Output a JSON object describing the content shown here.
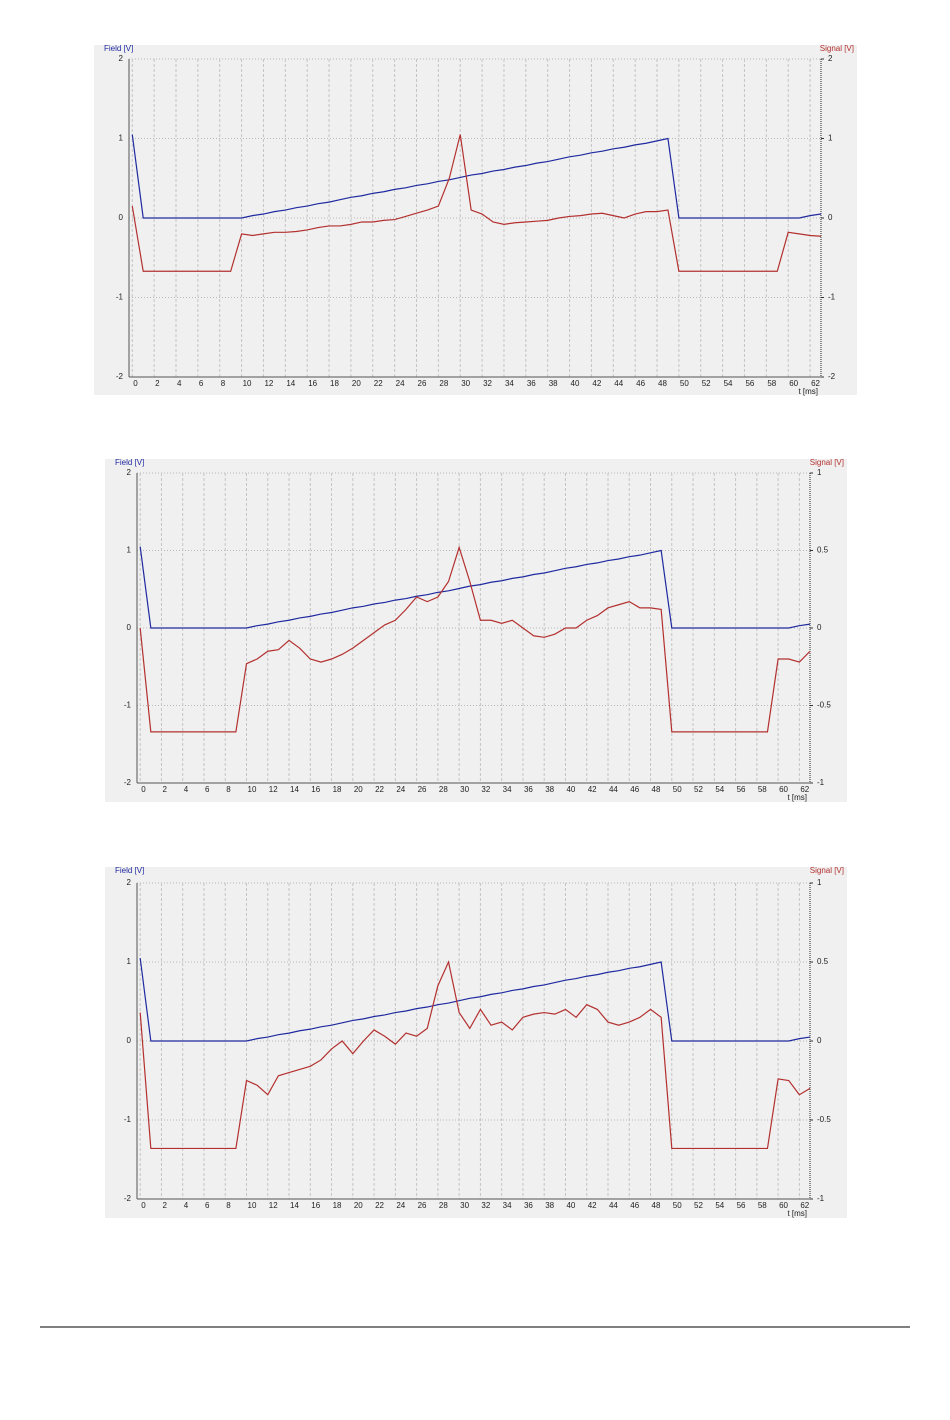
{
  "chart_data": [
    {
      "type": "line",
      "y_label": "Field [V]",
      "y2_label": "Signal [V]",
      "x_label": "t [ms]",
      "x": [
        0,
        1,
        2,
        3,
        4,
        5,
        6,
        7,
        8,
        9,
        10,
        11,
        12,
        13,
        14,
        15,
        16,
        17,
        18,
        19,
        20,
        21,
        22,
        23,
        24,
        25,
        26,
        27,
        28,
        29,
        30,
        31,
        32,
        33,
        34,
        35,
        36,
        37,
        38,
        39,
        40,
        41,
        42,
        43,
        44,
        45,
        46,
        47,
        48,
        49,
        50,
        51,
        52,
        53,
        54,
        55,
        56,
        57,
        58,
        59,
        60,
        61,
        62,
        63
      ],
      "xlim": [
        -0.3,
        63
      ],
      "xticks": [
        0,
        2,
        4,
        6,
        8,
        10,
        12,
        14,
        16,
        18,
        20,
        22,
        24,
        26,
        28,
        30,
        32,
        34,
        36,
        38,
        40,
        42,
        44,
        46,
        48,
        50,
        52,
        54,
        56,
        58,
        60,
        62
      ],
      "ylim": [
        -2,
        2
      ],
      "yticks": [
        -2,
        -1,
        0,
        1,
        2
      ],
      "y2lim": [
        -2,
        2
      ],
      "y2ticks": [
        -2,
        -1,
        0,
        1,
        2
      ],
      "grid": true,
      "series": [
        {
          "name": "Field",
          "color": "#1f2aa0",
          "values": [
            1.05,
            0,
            0,
            0,
            0,
            0,
            0,
            0,
            0,
            0,
            0,
            0.03,
            0.05,
            0.08,
            0.1,
            0.13,
            0.15,
            0.18,
            0.2,
            0.23,
            0.26,
            0.28,
            0.31,
            0.33,
            0.36,
            0.38,
            0.41,
            0.43,
            0.46,
            0.48,
            0.51,
            0.54,
            0.56,
            0.59,
            0.61,
            0.64,
            0.66,
            0.69,
            0.71,
            0.74,
            0.77,
            0.79,
            0.82,
            0.84,
            0.87,
            0.89,
            0.92,
            0.94,
            0.97,
            1.0,
            0,
            0,
            0,
            0,
            0,
            0,
            0,
            0,
            0,
            0,
            0,
            0,
            0.03,
            0.05
          ]
        },
        {
          "name": "Signal",
          "color": "#b3302f",
          "axis": "y2",
          "values": [
            0.15,
            -0.67,
            -0.67,
            -0.67,
            -0.67,
            -0.67,
            -0.67,
            -0.67,
            -0.67,
            -0.67,
            -0.2,
            -0.22,
            -0.2,
            -0.18,
            -0.18,
            -0.17,
            -0.15,
            -0.12,
            -0.1,
            -0.1,
            -0.08,
            -0.05,
            -0.05,
            -0.03,
            -0.02,
            0.02,
            0.06,
            0.1,
            0.15,
            0.5,
            1.05,
            0.1,
            0.05,
            -0.05,
            -0.08,
            -0.06,
            -0.05,
            -0.04,
            -0.03,
            0,
            0.02,
            0.03,
            0.05,
            0.06,
            0.03,
            0,
            0.05,
            0.08,
            0.08,
            0.1,
            -0.67,
            -0.67,
            -0.67,
            -0.67,
            -0.67,
            -0.67,
            -0.67,
            -0.67,
            -0.67,
            -0.67,
            -0.18,
            -0.2,
            -0.22,
            -0.23
          ]
        }
      ]
    },
    {
      "type": "line",
      "y_label": "Field [V]",
      "y2_label": "Signal [V]",
      "x_label": "t [ms]",
      "x": [
        0,
        1,
        2,
        3,
        4,
        5,
        6,
        7,
        8,
        9,
        10,
        11,
        12,
        13,
        14,
        15,
        16,
        17,
        18,
        19,
        20,
        21,
        22,
        23,
        24,
        25,
        26,
        27,
        28,
        29,
        30,
        31,
        32,
        33,
        34,
        35,
        36,
        37,
        38,
        39,
        40,
        41,
        42,
        43,
        44,
        45,
        46,
        47,
        48,
        49,
        50,
        51,
        52,
        53,
        54,
        55,
        56,
        57,
        58,
        59,
        60,
        61,
        62,
        63
      ],
      "xlim": [
        -0.3,
        63
      ],
      "xticks": [
        0,
        2,
        4,
        6,
        8,
        10,
        12,
        14,
        16,
        18,
        20,
        22,
        24,
        26,
        28,
        30,
        32,
        34,
        36,
        38,
        40,
        42,
        44,
        46,
        48,
        50,
        52,
        54,
        56,
        58,
        60,
        62
      ],
      "ylim": [
        -2,
        2
      ],
      "yticks": [
        -2,
        -1,
        0,
        1,
        2
      ],
      "y2lim": [
        -1,
        1
      ],
      "y2ticks": [
        -1,
        -0.5,
        0,
        0.5,
        1
      ],
      "grid": true,
      "series": [
        {
          "name": "Field",
          "color": "#1f2aa0",
          "values": [
            1.05,
            0,
            0,
            0,
            0,
            0,
            0,
            0,
            0,
            0,
            0,
            0.03,
            0.05,
            0.08,
            0.1,
            0.13,
            0.15,
            0.18,
            0.2,
            0.23,
            0.26,
            0.28,
            0.31,
            0.33,
            0.36,
            0.38,
            0.41,
            0.43,
            0.46,
            0.48,
            0.51,
            0.54,
            0.56,
            0.59,
            0.61,
            0.64,
            0.66,
            0.69,
            0.71,
            0.74,
            0.77,
            0.79,
            0.82,
            0.84,
            0.87,
            0.89,
            0.92,
            0.94,
            0.97,
            1.0,
            0,
            0,
            0,
            0,
            0,
            0,
            0,
            0,
            0,
            0,
            0,
            0,
            0.03,
            0.05
          ]
        },
        {
          "name": "Signal",
          "color": "#b3302f",
          "axis": "y2",
          "values": [
            0,
            -0.67,
            -0.67,
            -0.67,
            -0.67,
            -0.67,
            -0.67,
            -0.67,
            -0.67,
            -0.67,
            -0.23,
            -0.2,
            -0.15,
            -0.14,
            -0.08,
            -0.13,
            -0.2,
            -0.22,
            -0.2,
            -0.17,
            -0.13,
            -0.08,
            -0.03,
            0.02,
            0.05,
            0.12,
            0.2,
            0.17,
            0.2,
            0.3,
            0.52,
            0.3,
            0.05,
            0.05,
            0.03,
            0.05,
            0,
            -0.05,
            -0.06,
            -0.04,
            0,
            0,
            0.05,
            0.08,
            0.13,
            0.15,
            0.17,
            0.13,
            0.13,
            0.12,
            -0.67,
            -0.67,
            -0.67,
            -0.67,
            -0.67,
            -0.67,
            -0.67,
            -0.67,
            -0.67,
            -0.67,
            -0.2,
            -0.2,
            -0.22,
            -0.15
          ]
        }
      ]
    },
    {
      "type": "line",
      "y_label": "Field [V]",
      "y2_label": "Signal [V]",
      "x_label": "t [ms]",
      "x": [
        0,
        1,
        2,
        3,
        4,
        5,
        6,
        7,
        8,
        9,
        10,
        11,
        12,
        13,
        14,
        15,
        16,
        17,
        18,
        19,
        20,
        21,
        22,
        23,
        24,
        25,
        26,
        27,
        28,
        29,
        30,
        31,
        32,
        33,
        34,
        35,
        36,
        37,
        38,
        39,
        40,
        41,
        42,
        43,
        44,
        45,
        46,
        47,
        48,
        49,
        50,
        51,
        52,
        53,
        54,
        55,
        56,
        57,
        58,
        59,
        60,
        61,
        62,
        63
      ],
      "xlim": [
        -0.3,
        63
      ],
      "xticks": [
        0,
        2,
        4,
        6,
        8,
        10,
        12,
        14,
        16,
        18,
        20,
        22,
        24,
        26,
        28,
        30,
        32,
        34,
        36,
        38,
        40,
        42,
        44,
        46,
        48,
        50,
        52,
        54,
        56,
        58,
        60,
        62
      ],
      "ylim": [
        -2,
        2
      ],
      "yticks": [
        -2,
        -1,
        0,
        1,
        2
      ],
      "y2lim": [
        -1,
        1
      ],
      "y2ticks": [
        -1,
        -0.5,
        0,
        0.5,
        1
      ],
      "grid": true,
      "series": [
        {
          "name": "Field",
          "color": "#1f2aa0",
          "values": [
            1.05,
            0,
            0,
            0,
            0,
            0,
            0,
            0,
            0,
            0,
            0,
            0.03,
            0.05,
            0.08,
            0.1,
            0.13,
            0.15,
            0.18,
            0.2,
            0.23,
            0.26,
            0.28,
            0.31,
            0.33,
            0.36,
            0.38,
            0.41,
            0.43,
            0.46,
            0.48,
            0.51,
            0.54,
            0.56,
            0.59,
            0.61,
            0.64,
            0.66,
            0.69,
            0.71,
            0.74,
            0.77,
            0.79,
            0.82,
            0.84,
            0.87,
            0.89,
            0.92,
            0.94,
            0.97,
            1.0,
            0,
            0,
            0,
            0,
            0,
            0,
            0,
            0,
            0,
            0,
            0,
            0,
            0.03,
            0.05
          ]
        },
        {
          "name": "Signal",
          "color": "#b3302f",
          "axis": "y2",
          "values": [
            0.18,
            -0.68,
            -0.68,
            -0.68,
            -0.68,
            -0.68,
            -0.68,
            -0.68,
            -0.68,
            -0.68,
            -0.25,
            -0.28,
            -0.34,
            -0.22,
            -0.2,
            -0.18,
            -0.16,
            -0.12,
            -0.05,
            0,
            -0.08,
            0,
            0.07,
            0.03,
            -0.02,
            0.05,
            0.03,
            0.08,
            0.35,
            0.5,
            0.18,
            0.08,
            0.2,
            0.1,
            0.12,
            0.07,
            0.15,
            0.17,
            0.18,
            0.17,
            0.2,
            0.15,
            0.23,
            0.2,
            0.12,
            0.1,
            0.12,
            0.15,
            0.2,
            0.15,
            -0.68,
            -0.68,
            -0.68,
            -0.68,
            -0.68,
            -0.68,
            -0.68,
            -0.68,
            -0.68,
            -0.68,
            -0.24,
            -0.25,
            -0.34,
            -0.3
          ]
        }
      ]
    }
  ]
}
